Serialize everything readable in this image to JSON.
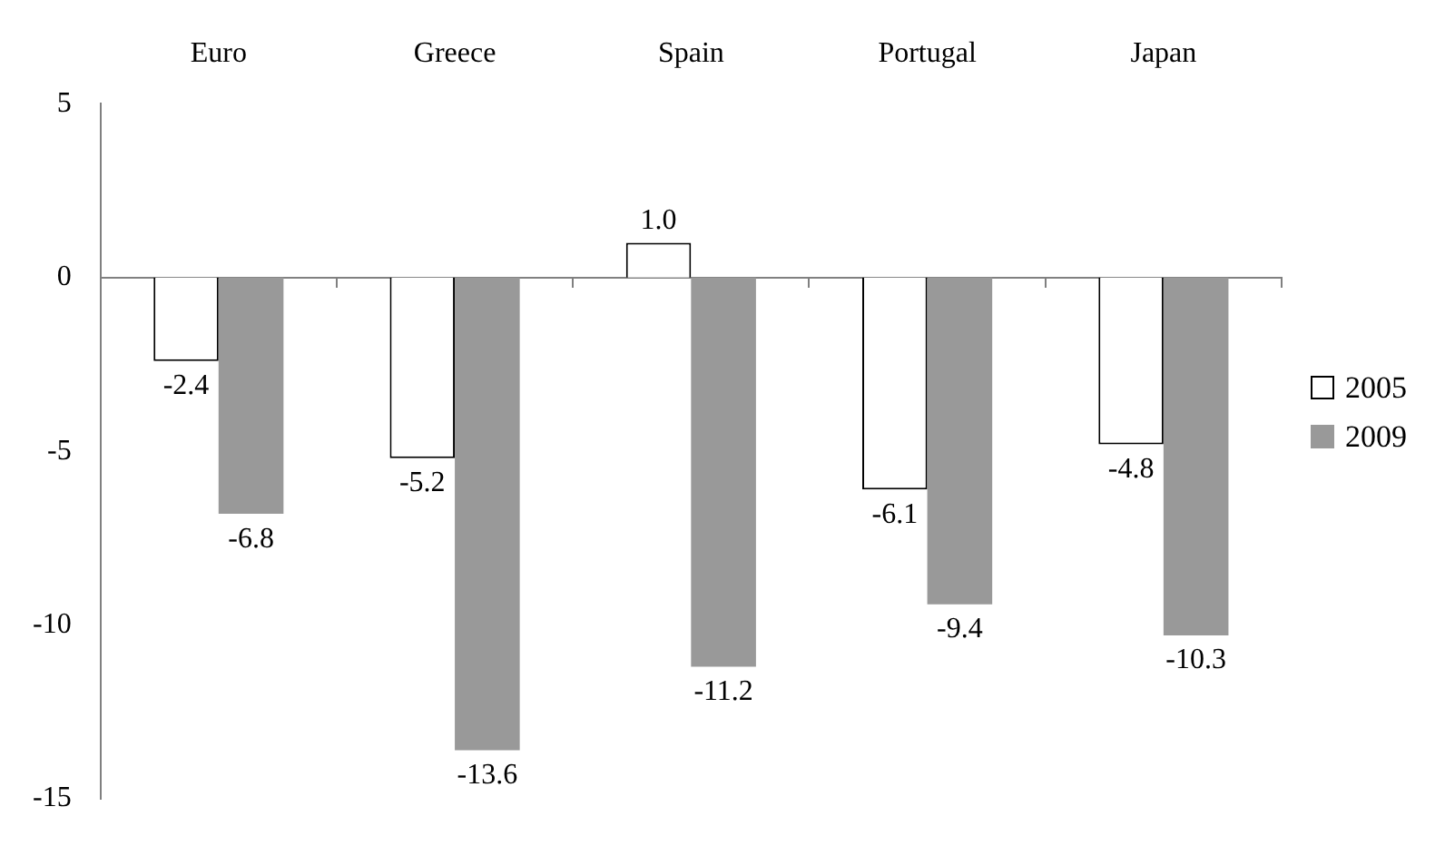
{
  "chart_data": {
    "type": "bar",
    "categories": [
      "Euro",
      "Greece",
      "Spain",
      "Portugal",
      "Japan"
    ],
    "series": [
      {
        "name": "2005",
        "color": "#ffffff",
        "values": [
          -2.4,
          -5.2,
          1,
          -6.1,
          -4.8
        ],
        "value_labels": [
          "-2.4",
          "-5.2",
          "1.0",
          "-6.1",
          "-4.8"
        ]
      },
      {
        "name": "2009",
        "color": "#999999",
        "values": [
          -6.8,
          -13.6,
          -11.2,
          -9.4,
          -10.3
        ],
        "value_labels": [
          "-6.8",
          "-13.6",
          "-11.2",
          "-9.4",
          "-10.3"
        ]
      }
    ],
    "ylim": [
      -15,
      5
    ],
    "yticks": [
      -15,
      -10,
      -5,
      0,
      5
    ],
    "legend": "right"
  }
}
